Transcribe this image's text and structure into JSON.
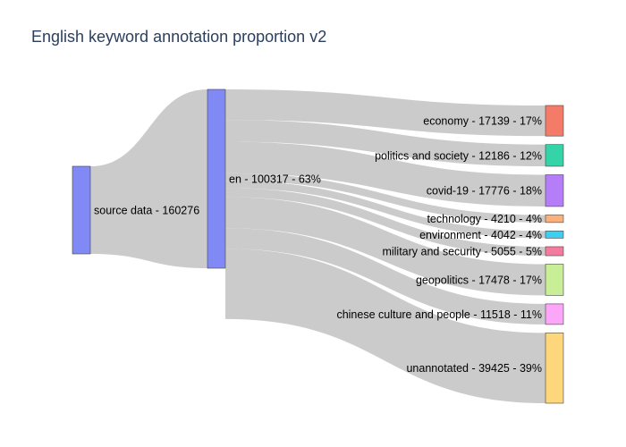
{
  "chart_data": {
    "type": "sankey",
    "title": "English keyword annotation proportion v2",
    "nodes": [
      {
        "id": "source",
        "label": "source data - 160276",
        "value": 160276,
        "color": "#8189f5"
      },
      {
        "id": "en",
        "label": "en - 100317 - 63%",
        "value": 100317,
        "color": "#8189f5"
      },
      {
        "id": "economy",
        "label": "economy - 17139 - 17%",
        "value": 17139,
        "color": "#f47b67"
      },
      {
        "id": "politics",
        "label": "politics and society - 12186 - 12%",
        "value": 12186,
        "color": "#34d3a8"
      },
      {
        "id": "covid",
        "label": "covid-19 - 17776 - 18%",
        "value": 17776,
        "color": "#b57df7"
      },
      {
        "id": "technology",
        "label": "technology - 4210 - 4%",
        "value": 4210,
        "color": "#fdb07a"
      },
      {
        "id": "environment",
        "label": "environment - 4042 - 4%",
        "value": 4042,
        "color": "#3bcff2"
      },
      {
        "id": "military",
        "label": "military and security - 5055 - 5%",
        "value": 5055,
        "color": "#f57aa0"
      },
      {
        "id": "geopolitics",
        "label": "geopolitics - 17478 - 17%",
        "value": 17478,
        "color": "#c9ee98"
      },
      {
        "id": "culture",
        "label": "chinese culture and people - 11518 - 11%",
        "value": 11518,
        "color": "#fca6f9"
      },
      {
        "id": "unannotated",
        "label": "unannotated - 39425 - 39%",
        "value": 39425,
        "color": "#fed67b"
      }
    ],
    "links": [
      {
        "source": "source",
        "target": "en",
        "value": 100317
      },
      {
        "source": "en",
        "target": "economy",
        "value": 17139
      },
      {
        "source": "en",
        "target": "politics",
        "value": 12186
      },
      {
        "source": "en",
        "target": "covid",
        "value": 17776
      },
      {
        "source": "en",
        "target": "technology",
        "value": 4210
      },
      {
        "source": "en",
        "target": "environment",
        "value": 4042
      },
      {
        "source": "en",
        "target": "military",
        "value": 5055
      },
      {
        "source": "en",
        "target": "geopolitics",
        "value": 17478
      },
      {
        "source": "en",
        "target": "culture",
        "value": 11518
      },
      {
        "source": "en",
        "target": "unannotated",
        "value": 39425
      }
    ]
  }
}
